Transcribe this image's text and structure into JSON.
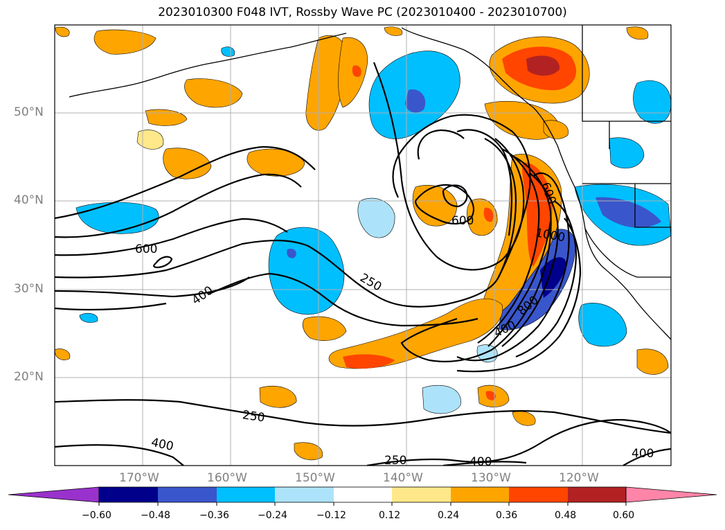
{
  "title": "2023010300 F048 IVT, Rossby Wave PC (2023010400 - 2023010700)",
  "latitude_labels": [
    "50°N",
    "40°N",
    "30°N",
    "20°N"
  ],
  "longitude_labels": [
    "170°W",
    "160°W",
    "150°W",
    "140°W",
    "130°W",
    "120°W"
  ],
  "contour_labels": [
    "600",
    "400",
    "250",
    "600",
    "1000",
    "600",
    "800",
    "400",
    "250",
    "400",
    "250",
    "400",
    "400"
  ],
  "colorbar": {
    "tick_labels": [
      "−0.60",
      "−0.48",
      "−0.36",
      "−0.24",
      "−0.12",
      "0.12",
      "0.24",
      "0.36",
      "0.48",
      "0.60"
    ],
    "colors": [
      "#9932CC",
      "#00008B",
      "#3A56CC",
      "#00BFFF",
      "#ADE3FA",
      "#FFFFFF",
      "#FFE88A",
      "#FFA500",
      "#FF4500",
      "#B22222",
      "#FF85A8"
    ]
  },
  "colors": {
    "contour": "#000000",
    "gridline": "#b0b0b0",
    "axis_label": "#808080"
  }
}
